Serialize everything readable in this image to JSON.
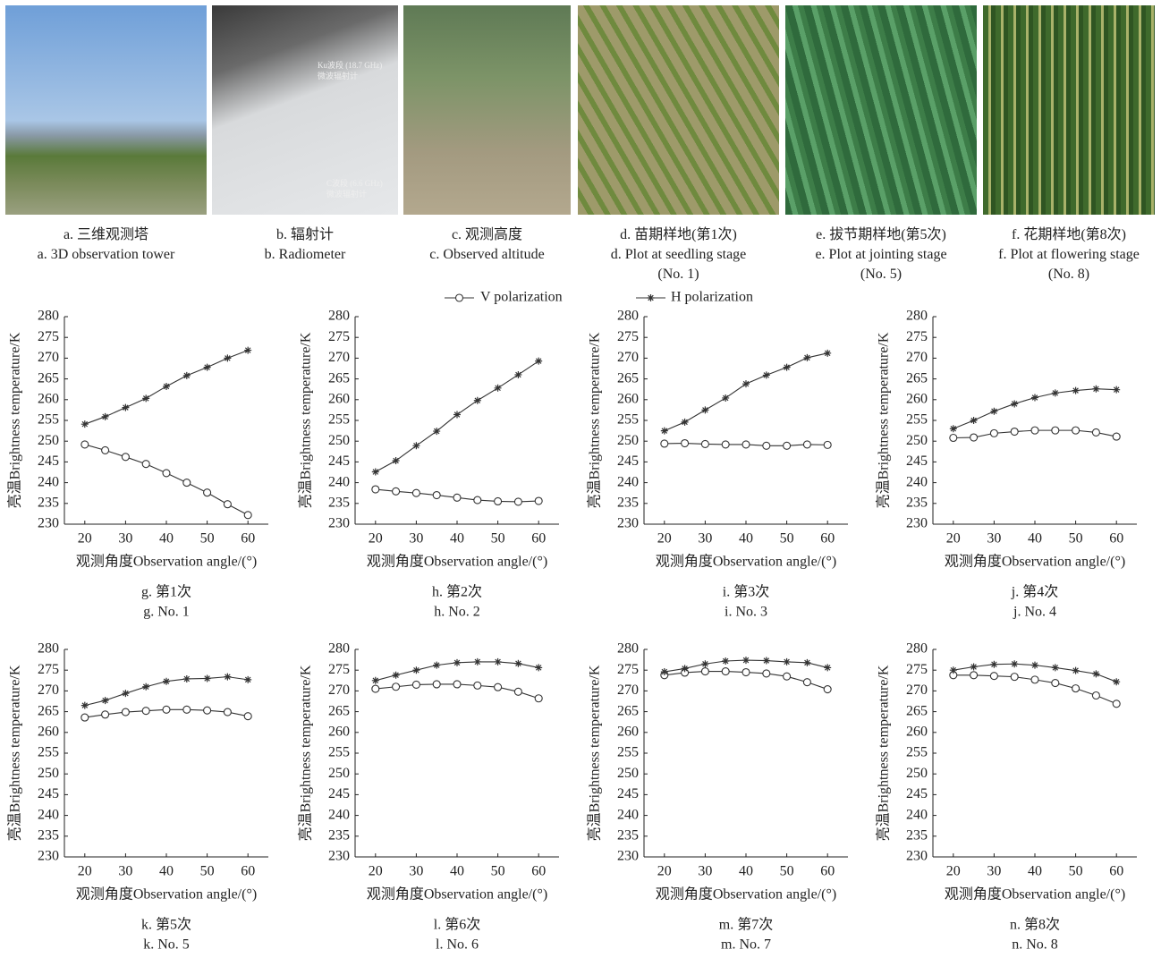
{
  "photos": [
    {
      "caption": [
        "a. 三维观测塔",
        "a. 3D observation tower"
      ]
    },
    {
      "caption": [
        "b. 辐射计",
        "b. Radiometer"
      ],
      "labels": [
        "Ku波段 (18.7 GHz)",
        "微波辐射计",
        "C波段 (6.6 GHz)",
        "微波辐射计"
      ]
    },
    {
      "caption": [
        "c. 观测高度",
        "c. Observed altitude"
      ]
    },
    {
      "caption": [
        "d. 苗期样地(第1次)",
        "d. Plot at seedling stage",
        "(No. 1)"
      ]
    },
    {
      "caption": [
        "e. 拔节期样地(第5次)",
        "e. Plot at jointing stage",
        "(No. 5)"
      ]
    },
    {
      "caption": [
        "f. 花期样地(第8次)",
        "f. Plot at flowering stage",
        "(No. 8)"
      ]
    }
  ],
  "chart_data": [
    {
      "type": "line",
      "title": "g. 第1次",
      "subtitle": "g. No. 1",
      "x_label": "观测角度Observation angle/(°)",
      "y_label": "亮温Brightness temperature/K",
      "x": [
        20,
        25,
        30,
        35,
        40,
        45,
        50,
        55,
        60
      ],
      "xlim": [
        15,
        65
      ],
      "xticks": [
        20,
        30,
        40,
        50,
        60
      ],
      "ylim": [
        230,
        280
      ],
      "yticks": [
        230,
        235,
        240,
        245,
        250,
        255,
        260,
        265,
        270,
        275,
        280
      ],
      "series": [
        {
          "name": "V polarization",
          "color": "#333333",
          "marker": "circle",
          "values": [
            249.2,
            247.8,
            246.2,
            244.5,
            242.3,
            240.0,
            237.6,
            234.8,
            232.2
          ]
        },
        {
          "name": "H polarization",
          "color": "#333333",
          "marker": "star",
          "values": [
            254.1,
            255.9,
            258.1,
            260.3,
            263.2,
            265.8,
            267.8,
            270.0,
            271.9
          ]
        }
      ]
    },
    {
      "type": "line",
      "title": "h. 第2次",
      "subtitle": "h. No. 2",
      "x_label": "观测角度Observation angle/(°)",
      "y_label": "亮温Brightness temperature/K",
      "x": [
        20,
        25,
        30,
        35,
        40,
        45,
        50,
        55,
        60
      ],
      "xlim": [
        15,
        65
      ],
      "xticks": [
        20,
        30,
        40,
        50,
        60
      ],
      "ylim": [
        230,
        280
      ],
      "yticks": [
        230,
        235,
        240,
        245,
        250,
        255,
        260,
        265,
        270,
        275,
        280
      ],
      "series": [
        {
          "name": "V polarization",
          "color": "#333333",
          "marker": "circle",
          "values": [
            238.4,
            237.9,
            237.5,
            237.0,
            236.4,
            235.8,
            235.5,
            235.4,
            235.6
          ]
        },
        {
          "name": "H polarization",
          "color": "#333333",
          "marker": "star",
          "values": [
            242.6,
            245.3,
            248.9,
            252.4,
            256.4,
            259.8,
            262.8,
            266.0,
            269.3
          ]
        }
      ]
    },
    {
      "type": "line",
      "title": "i. 第3次",
      "subtitle": "i. No. 3",
      "x_label": "观测角度Observation angle/(°)",
      "y_label": "亮温Brightness temperature/K",
      "x": [
        20,
        25,
        30,
        35,
        40,
        45,
        50,
        55,
        60
      ],
      "xlim": [
        15,
        65
      ],
      "xticks": [
        20,
        30,
        40,
        50,
        60
      ],
      "ylim": [
        230,
        280
      ],
      "yticks": [
        230,
        235,
        240,
        245,
        250,
        255,
        260,
        265,
        270,
        275,
        280
      ],
      "series": [
        {
          "name": "V polarization",
          "color": "#333333",
          "marker": "circle",
          "values": [
            249.4,
            249.5,
            249.3,
            249.2,
            249.2,
            248.9,
            248.9,
            249.2,
            249.1
          ]
        },
        {
          "name": "H polarization",
          "color": "#333333",
          "marker": "star",
          "values": [
            252.5,
            254.6,
            257.5,
            260.4,
            263.8,
            265.9,
            267.8,
            270.1,
            271.2
          ]
        }
      ]
    },
    {
      "type": "line",
      "title": "j. 第4次",
      "subtitle": "j. No. 4",
      "x_label": "观测角度Observation angle/(°)",
      "y_label": "亮温Brightness temperature/K",
      "x": [
        20,
        25,
        30,
        35,
        40,
        45,
        50,
        55,
        60
      ],
      "xlim": [
        15,
        65
      ],
      "xticks": [
        20,
        30,
        40,
        50,
        60
      ],
      "ylim": [
        230,
        280
      ],
      "yticks": [
        230,
        235,
        240,
        245,
        250,
        255,
        260,
        265,
        270,
        275,
        280
      ],
      "series": [
        {
          "name": "V polarization",
          "color": "#333333",
          "marker": "circle",
          "values": [
            250.8,
            250.9,
            251.9,
            252.3,
            252.6,
            252.6,
            252.6,
            252.1,
            251.1
          ]
        },
        {
          "name": "H polarization",
          "color": "#333333",
          "marker": "star",
          "values": [
            253.0,
            255.0,
            257.2,
            259.0,
            260.5,
            261.6,
            262.2,
            262.6,
            262.4
          ]
        }
      ]
    },
    {
      "type": "line",
      "title": "k. 第5次",
      "subtitle": "k. No. 5",
      "x_label": "观测角度Observation angle/(°)",
      "y_label": "亮温Brightness temperature/K",
      "x": [
        20,
        25,
        30,
        35,
        40,
        45,
        50,
        55,
        60
      ],
      "xlim": [
        15,
        65
      ],
      "xticks": [
        20,
        30,
        40,
        50,
        60
      ],
      "ylim": [
        230,
        280
      ],
      "yticks": [
        230,
        235,
        240,
        245,
        250,
        255,
        260,
        265,
        270,
        275,
        280
      ],
      "series": [
        {
          "name": "V polarization",
          "color": "#333333",
          "marker": "circle",
          "values": [
            263.6,
            264.3,
            264.9,
            265.2,
            265.5,
            265.5,
            265.3,
            264.9,
            263.9
          ]
        },
        {
          "name": "H polarization",
          "color": "#333333",
          "marker": "star",
          "values": [
            266.5,
            267.7,
            269.4,
            271.0,
            272.3,
            272.9,
            273.0,
            273.4,
            272.7
          ]
        }
      ]
    },
    {
      "type": "line",
      "title": "l. 第6次",
      "subtitle": "l. No. 6",
      "x_label": "观测角度Observation angle/(°)",
      "y_label": "亮温Brightness temperature/K",
      "x": [
        20,
        25,
        30,
        35,
        40,
        45,
        50,
        55,
        60
      ],
      "xlim": [
        15,
        65
      ],
      "xticks": [
        20,
        30,
        40,
        50,
        60
      ],
      "ylim": [
        230,
        280
      ],
      "yticks": [
        230,
        235,
        240,
        245,
        250,
        255,
        260,
        265,
        270,
        275,
        280
      ],
      "series": [
        {
          "name": "V polarization",
          "color": "#333333",
          "marker": "circle",
          "values": [
            270.5,
            271.0,
            271.5,
            271.6,
            271.6,
            271.3,
            270.9,
            269.8,
            268.2
          ]
        },
        {
          "name": "H polarization",
          "color": "#333333",
          "marker": "star",
          "values": [
            272.5,
            273.8,
            275.0,
            276.2,
            276.8,
            277.0,
            277.0,
            276.6,
            275.6
          ]
        }
      ]
    },
    {
      "type": "line",
      "title": "m. 第7次",
      "subtitle": "m. No. 7",
      "x_label": "观测角度Observation angle/(°)",
      "y_label": "亮温Brightness temperature/K",
      "x": [
        20,
        25,
        30,
        35,
        40,
        45,
        50,
        55,
        60
      ],
      "xlim": [
        15,
        65
      ],
      "xticks": [
        20,
        30,
        40,
        50,
        60
      ],
      "ylim": [
        230,
        280
      ],
      "yticks": [
        230,
        235,
        240,
        245,
        250,
        255,
        260,
        265,
        270,
        275,
        280
      ],
      "series": [
        {
          "name": "V polarization",
          "color": "#333333",
          "marker": "circle",
          "values": [
            273.8,
            274.4,
            274.7,
            274.7,
            274.5,
            274.2,
            273.5,
            272.1,
            270.4
          ]
        },
        {
          "name": "H polarization",
          "color": "#333333",
          "marker": "star",
          "values": [
            274.6,
            275.4,
            276.5,
            277.2,
            277.4,
            277.3,
            277.0,
            276.8,
            275.6
          ]
        }
      ]
    },
    {
      "type": "line",
      "title": "n. 第8次",
      "subtitle": "n. No. 8",
      "x_label": "观测角度Observation angle/(°)",
      "y_label": "亮温Brightness temperature/K",
      "x": [
        20,
        25,
        30,
        35,
        40,
        45,
        50,
        55,
        60
      ],
      "xlim": [
        15,
        65
      ],
      "xticks": [
        20,
        30,
        40,
        50,
        60
      ],
      "ylim": [
        230,
        280
      ],
      "yticks": [
        230,
        235,
        240,
        245,
        250,
        255,
        260,
        265,
        270,
        275,
        280
      ],
      "series": [
        {
          "name": "V polarization",
          "color": "#333333",
          "marker": "circle",
          "values": [
            273.8,
            273.8,
            273.6,
            273.4,
            272.7,
            271.9,
            270.6,
            268.9,
            266.9
          ]
        },
        {
          "name": "H polarization",
          "color": "#333333",
          "marker": "star",
          "values": [
            275.0,
            275.8,
            276.4,
            276.5,
            276.2,
            275.6,
            274.9,
            274.1,
            272.2
          ]
        }
      ]
    }
  ]
}
